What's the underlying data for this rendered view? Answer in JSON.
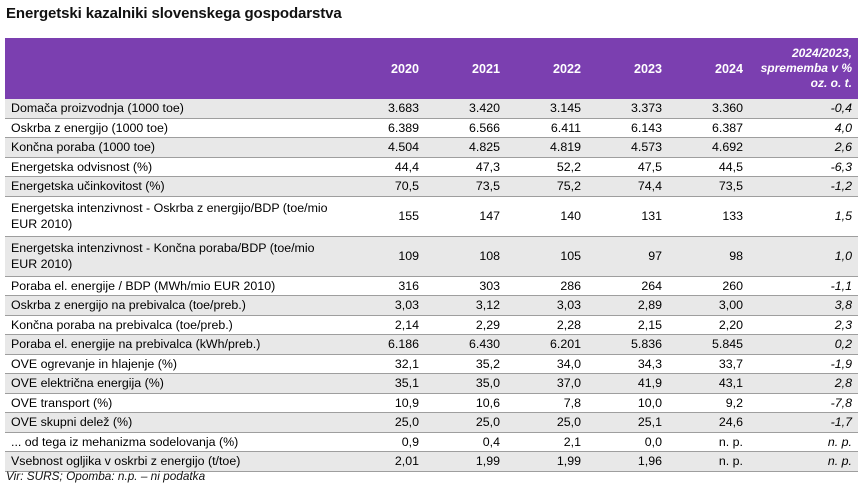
{
  "title": "Energetski kazalniki slovenskega gospodarstva",
  "header": {
    "label": "",
    "years": [
      "2020",
      "2021",
      "2022",
      "2023",
      "2024"
    ],
    "change_lines": [
      "2024/2023,",
      "sprememba v %",
      "oz. o. t."
    ]
  },
  "rows": [
    {
      "label": "Domača proizvodnja (1000 toe)",
      "values": [
        "3.683",
        "3.420",
        "3.145",
        "3.373",
        "3.360"
      ],
      "change": "-0,4",
      "shaded": true,
      "tall": false
    },
    {
      "label": "Oskrba z energijo (1000 toe)",
      "values": [
        "6.389",
        "6.566",
        "6.411",
        "6.143",
        "6.387"
      ],
      "change": "4,0",
      "shaded": false,
      "tall": false
    },
    {
      "label": "Končna poraba (1000 toe)",
      "values": [
        "4.504",
        "4.825",
        "4.819",
        "4.573",
        "4.692"
      ],
      "change": "2,6",
      "shaded": true,
      "tall": false
    },
    {
      "label": "Energetska odvisnost (%)",
      "values": [
        "44,4",
        "47,3",
        "52,2",
        "47,5",
        "44,5"
      ],
      "change": "-6,3",
      "shaded": false,
      "tall": false
    },
    {
      "label": "Energetska učinkovitost (%)",
      "values": [
        "70,5",
        "73,5",
        "75,2",
        "74,4",
        "73,5"
      ],
      "change": "-1,2",
      "shaded": true,
      "tall": false
    },
    {
      "label": "Energetska intenzivnost - Oskrba z energijo/BDP (toe/mio EUR 2010)",
      "values": [
        "155",
        "147",
        "140",
        "131",
        "133"
      ],
      "change": "1,5",
      "shaded": false,
      "tall": true
    },
    {
      "label": "Energetska intenzivnost - Končna poraba/BDP (toe/mio EUR 2010)",
      "values": [
        "109",
        "108",
        "105",
        "97",
        "98"
      ],
      "change": "1,0",
      "shaded": true,
      "tall": true
    },
    {
      "label": "Poraba el. energije / BDP (MWh/mio EUR 2010)",
      "values": [
        "316",
        "303",
        "286",
        "264",
        "260"
      ],
      "change": "-1,1",
      "shaded": false,
      "tall": false
    },
    {
      "label": "Oskrba z energijo na prebivalca (toe/preb.)",
      "values": [
        "3,03",
        "3,12",
        "3,03",
        "2,89",
        "3,00"
      ],
      "change": "3,8",
      "shaded": true,
      "tall": false
    },
    {
      "label": "Končna poraba na prebivalca (toe/preb.)",
      "values": [
        "2,14",
        "2,29",
        "2,28",
        "2,15",
        "2,20"
      ],
      "change": "2,3",
      "shaded": false,
      "tall": false
    },
    {
      "label": "Poraba el. energije na prebivalca (kWh/preb.)",
      "values": [
        "6.186",
        "6.430",
        "6.201",
        "5.836",
        "5.845"
      ],
      "change": "0,2",
      "shaded": true,
      "tall": false
    },
    {
      "label": "OVE ogrevanje in hlajenje (%)",
      "values": [
        "32,1",
        "35,2",
        "34,0",
        "34,3",
        "33,7"
      ],
      "change": "-1,9",
      "shaded": false,
      "tall": false
    },
    {
      "label": "OVE električna energija (%)",
      "values": [
        "35,1",
        "35,0",
        "37,0",
        "41,9",
        "43,1"
      ],
      "change": "2,8",
      "shaded": true,
      "tall": false
    },
    {
      "label": "OVE transport (%)",
      "values": [
        "10,9",
        "10,6",
        "7,8",
        "10,0",
        "9,2"
      ],
      "change": "-7,8",
      "shaded": false,
      "tall": false
    },
    {
      "label": "OVE skupni delež (%)",
      "values": [
        "25,0",
        "25,0",
        "25,0",
        "25,1",
        "24,6"
      ],
      "change": "-1,7",
      "shaded": true,
      "tall": false
    },
    {
      "label": "... od tega iz mehanizma sodelovanja (%)",
      "values": [
        "0,9",
        "0,4",
        "2,1",
        "0,0",
        "n. p."
      ],
      "change": "n. p.",
      "shaded": false,
      "tall": false
    },
    {
      "label": "Vsebnost ogljika v oskrbi z energijo (t/toe)",
      "values": [
        "2,01",
        "1,99",
        "1,99",
        "1,96",
        "n. p."
      ],
      "change": "n. p.",
      "shaded": true,
      "tall": false
    }
  ],
  "source": "Vir: SURS; Opomba: n.p.  – ni podatka",
  "colors": {
    "header_bg": "#7b3fb0",
    "header_text": "#ffffff",
    "shade": "#e8e8e8",
    "rule": "#9e9e9e"
  }
}
